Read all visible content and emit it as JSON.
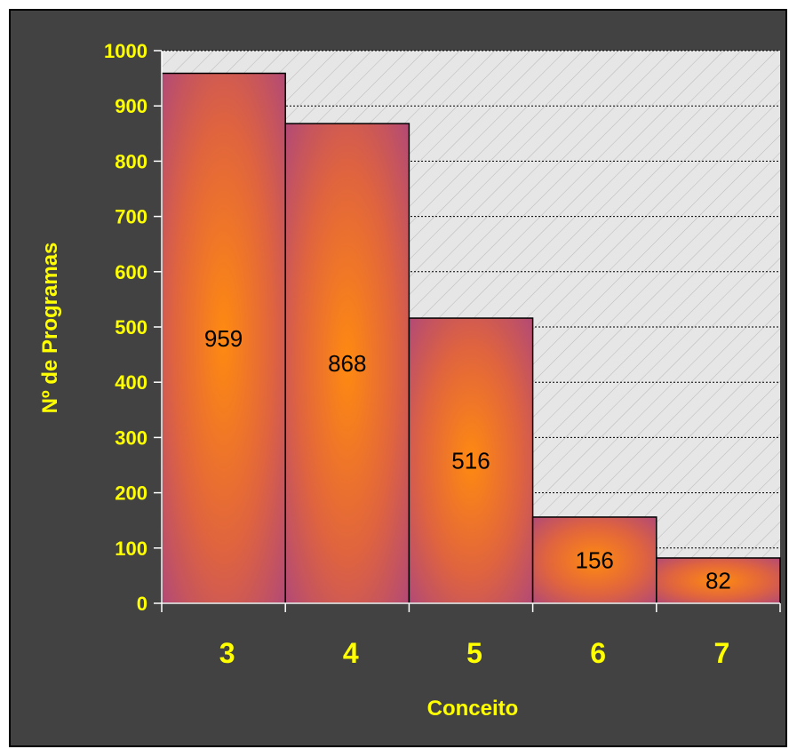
{
  "chart_data": {
    "type": "bar",
    "title": "",
    "categories": [
      "3",
      "4",
      "5",
      "6",
      "7"
    ],
    "values": [
      959,
      868,
      516,
      156,
      82
    ],
    "data_labels": [
      "959",
      "868",
      "516",
      "156",
      "82"
    ],
    "xlabel": "Conceito",
    "ylabel": "Nº de Programas",
    "ylim": [
      0,
      1000
    ],
    "yticks": [
      "0",
      "100",
      "200",
      "300",
      "400",
      "500",
      "600",
      "700",
      "800",
      "900",
      "1000"
    ],
    "grid": true,
    "legend": "none",
    "colors": {
      "bar_edge": "#b04878",
      "bar_center": "#ff8a10",
      "axis_text": "#ffff00",
      "frame_bg": "#424242",
      "plot_bg": "#e6e6e6"
    }
  }
}
